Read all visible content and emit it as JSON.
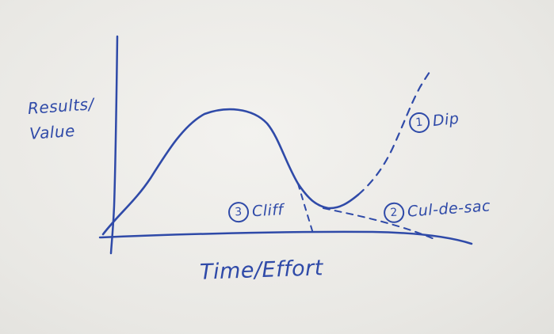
{
  "diagram": {
    "y_axis_label_line1": "Results/",
    "y_axis_label_line2": "Value",
    "x_axis_label": "Time/Effort",
    "labels": [
      {
        "number": "1",
        "text": "Dip"
      },
      {
        "number": "2",
        "text": "Cul-de-sac"
      },
      {
        "number": "3",
        "text": "Cliff"
      }
    ]
  },
  "colors": {
    "ink": "#2f4aa8",
    "paper": "#ecebe8"
  }
}
